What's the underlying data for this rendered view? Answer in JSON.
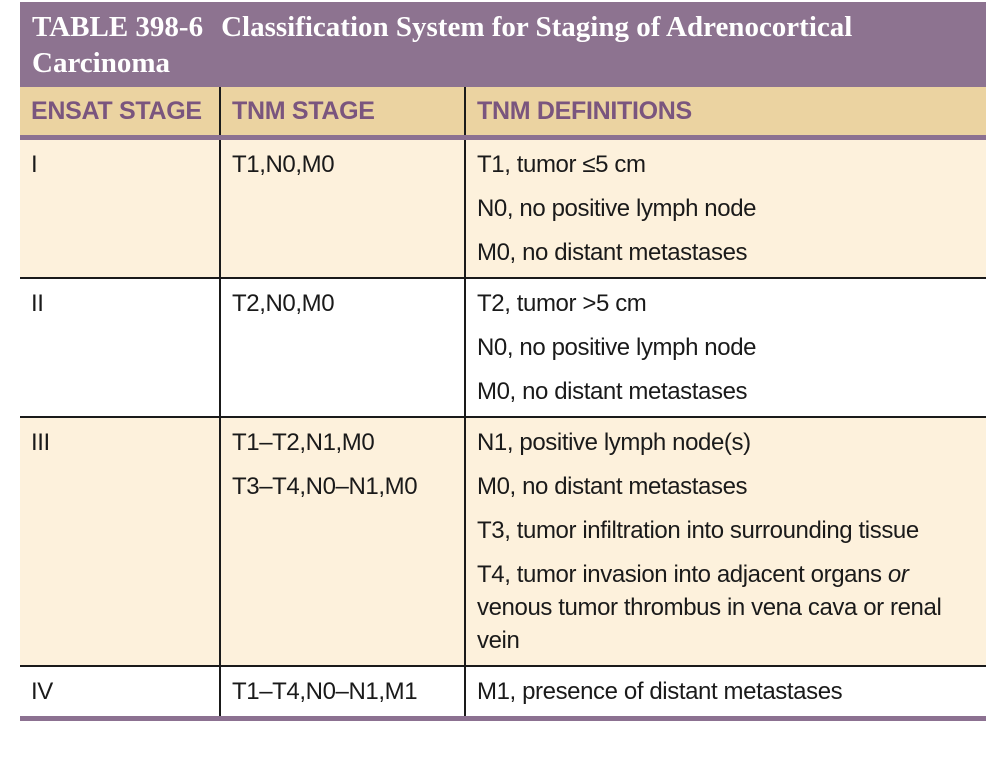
{
  "table": {
    "label": "TABLE 398-6",
    "title": "Classification System for Staging of Adrenocortical Carcinoma",
    "columns": [
      "ENSAT STAGE",
      "TNM STAGE",
      "TNM DEFINITIONS"
    ],
    "rows": [
      {
        "ensat_stage": "I",
        "tnm_stages": [
          "T1,N0,M0"
        ],
        "definitions": [
          "T1, tumor ≤5 cm",
          "N0, no positive lymph node",
          "M0, no distant metastases"
        ]
      },
      {
        "ensat_stage": "II",
        "tnm_stages": [
          "T2,N0,M0"
        ],
        "definitions": [
          "T2, tumor >5 cm",
          "N0, no positive lymph node",
          "M0, no distant metastases"
        ]
      },
      {
        "ensat_stage": "III",
        "tnm_stages": [
          "T1–T2,N1,M0",
          "T3–T4,N0–N1,M0"
        ],
        "definitions": [
          "N1, positive lymph node(s)",
          "M0, no distant metastases",
          "T3, tumor infiltration into surrounding tissue"
        ],
        "t4_definition": {
          "pre": "T4, tumor invasion into adjacent organs ",
          "italic_word": "or",
          "post": " venous tumor thrombus in vena cava or renal vein"
        }
      },
      {
        "ensat_stage": "IV",
        "tnm_stages": [
          "T1–T4,N0–N1,M1"
        ],
        "definitions": [
          "M1, presence of distant metastases"
        ]
      }
    ],
    "colors": {
      "title_bar": "#8d7390",
      "header_band": "#ebd3a1",
      "header_text": "#7a557e",
      "row_cream": "#fdf1dc",
      "row_white": "#ffffff",
      "rule_purple": "#8c7191",
      "body_text": "#1a1a1a",
      "title_text": "#ffffff"
    }
  }
}
